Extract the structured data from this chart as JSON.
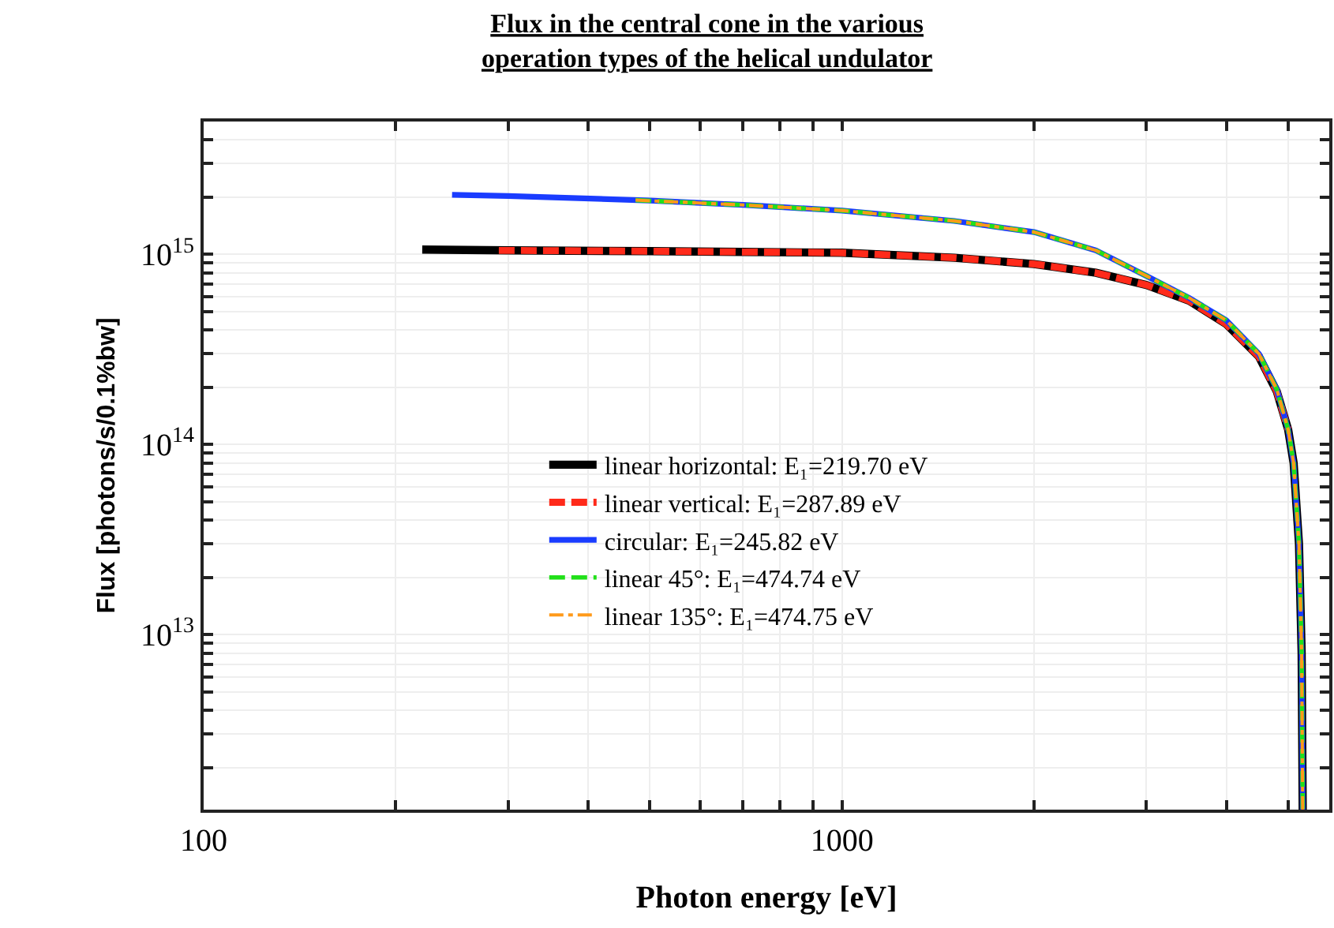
{
  "chart_data": {
    "type": "line",
    "title": "Flux in the central cone in the various\noperation types of the helical undulator",
    "xlabel": "Photon energy [eV]",
    "ylabel": "Flux [photons/s/0.1%bw]",
    "log": "xy",
    "grid": true,
    "legend": "center",
    "marker": "none",
    "xlim": [
      100,
      5800
    ],
    "ylim": [
      1200000000000.0,
      5000000000000000.0
    ],
    "xticks": [
      100,
      {
        "value": 200,
        "label": null
      },
      {
        "value": 300,
        "label": null
      },
      {
        "value": 400,
        "label": null
      },
      {
        "value": 500,
        "label": null
      },
      {
        "value": 600,
        "label": null
      },
      {
        "value": 700,
        "label": null
      },
      {
        "value": 800,
        "label": null
      },
      {
        "value": 900,
        "label": null
      },
      1000,
      {
        "value": 2000,
        "label": null
      },
      {
        "value": 3000,
        "label": null
      },
      {
        "value": 4000,
        "label": null
      },
      {
        "value": 5000,
        "label": null
      }
    ],
    "yticks": [
      {
        "value": 2000000000000.0,
        "label": null
      },
      {
        "value": 3000000000000.0,
        "label": null
      },
      {
        "value": 4000000000000.0,
        "label": null
      },
      {
        "value": 5000000000000.0,
        "label": null
      },
      {
        "value": 6000000000000.0,
        "label": null
      },
      {
        "value": 7000000000000.0,
        "label": null
      },
      {
        "value": 8000000000000.0,
        "label": null
      },
      {
        "value": 9000000000000.0,
        "label": null
      },
      {
        "value": 10000000000000.0,
        "label": "10$^{13}$"
      },
      {
        "value": 20000000000000.0,
        "label": null
      },
      {
        "value": 30000000000000.0,
        "label": null
      },
      {
        "value": 40000000000000.0,
        "label": null
      },
      {
        "value": 50000000000000.0,
        "label": null
      },
      {
        "value": 60000000000000.0,
        "label": null
      },
      {
        "value": 70000000000000.0,
        "label": null
      },
      {
        "value": 80000000000000.0,
        "label": null
      },
      {
        "value": 90000000000000.0,
        "label": null
      },
      {
        "value": 100000000000000.0,
        "label": "10$^{14}$"
      },
      {
        "value": 200000000000000.0,
        "label": null
      },
      {
        "value": 300000000000000.0,
        "label": null
      },
      {
        "value": 400000000000000.0,
        "label": null
      },
      {
        "value": 500000000000000.0,
        "label": null
      },
      {
        "value": 600000000000000.0,
        "label": null
      },
      {
        "value": 700000000000000.0,
        "label": null
      },
      {
        "value": 800000000000000.0,
        "label": null
      },
      {
        "value": 900000000000000.0,
        "label": null
      },
      {
        "value": 1000000000000000.0,
        "label": "10$^{15}$"
      },
      {
        "value": 2000000000000000.0,
        "label": null
      },
      {
        "value": 3000000000000000.0,
        "label": null
      },
      {
        "value": 4000000000000000.0,
        "label": null
      }
    ],
    "series": [
      {
        "name": "linear horizontal: E₁=219.70 eV",
        "color": "#000000",
        "line_style": "solid",
        "x": [
          220,
          300,
          500,
          700,
          1000,
          1500,
          2000,
          2500,
          3000,
          3500,
          4000,
          4500,
          4800,
          5000,
          5100,
          5200,
          5250,
          5270
        ],
        "values": [
          1060000000000000.0,
          1050000000000000.0,
          1040000000000000.0,
          1030000000000000.0,
          1020000000000000.0,
          960000000000000.0,
          890000000000000.0,
          800000000000000.0,
          690000000000000.0,
          570000000000000.0,
          430000000000000.0,
          290000000000000.0,
          190000000000000.0,
          120000000000000.0,
          80000000000000.0,
          30000000000000.0,
          8000000000000.0,
          1200000000000.0
        ]
      },
      {
        "name": "linear vertical: E₁=287.89 eV",
        "color": "#ff2a1a",
        "line_style": "dashed",
        "x": [
          290,
          500,
          700,
          1000,
          1500,
          2000,
          2500,
          3000,
          3500,
          4000,
          4500,
          4800,
          5000
        ],
        "values": [
          1050000000000000.0,
          1040000000000000.0,
          1030000000000000.0,
          1020000000000000.0,
          960000000000000.0,
          890000000000000.0,
          800000000000000.0,
          690000000000000.0,
          570000000000000.0,
          430000000000000.0,
          290000000000000.0,
          190000000000000.0,
          120000000000000.0
        ]
      },
      {
        "name": "circular: E₁=245.82 eV",
        "color": "#1a3cff",
        "line_style": "solid",
        "x": [
          245,
          300,
          500,
          700,
          1000,
          1500,
          2000,
          2500,
          3000,
          3500,
          4000,
          4500,
          4800,
          5000,
          5100,
          5200,
          5250,
          5270
        ],
        "values": [
          2060000000000000.0,
          2030000000000000.0,
          1920000000000000.0,
          1820000000000000.0,
          1700000000000000.0,
          1500000000000000.0,
          1310000000000000.0,
          1050000000000000.0,
          770000000000000.0,
          590000000000000.0,
          450000000000000.0,
          300000000000000.0,
          195000000000000.0,
          120000000000000.0,
          80000000000000.0,
          30000000000000.0,
          8000000000000.0,
          1200000000000.0
        ]
      },
      {
        "name": "linear 45°: E₁=474.74 eV",
        "color": "#22e01a",
        "line_style": "dashed",
        "x": [
          475,
          700,
          1000,
          1500,
          2000,
          2500,
          3000,
          3500,
          4000,
          4500,
          4800,
          5000,
          5100,
          5200,
          5250,
          5270
        ],
        "values": [
          1930000000000000.0,
          1820000000000000.0,
          1700000000000000.0,
          1500000000000000.0,
          1310000000000000.0,
          1050000000000000.0,
          770000000000000.0,
          590000000000000.0,
          450000000000000.0,
          300000000000000.0,
          195000000000000.0,
          120000000000000.0,
          80000000000000.0,
          30000000000000.0,
          8000000000000.0,
          1200000000000.0
        ]
      },
      {
        "name": "linear 135°: E₁=474.75 eV",
        "color": "#ff9a1a",
        "line_style": "dashdot",
        "x": [
          475,
          700,
          1000,
          1500,
          2000,
          2500,
          3000,
          3500,
          4000,
          4500,
          4800,
          5000,
          5100,
          5200,
          5250,
          5270
        ],
        "values": [
          1930000000000000.0,
          1820000000000000.0,
          1700000000000000.0,
          1500000000000000.0,
          1310000000000000.0,
          1050000000000000.0,
          770000000000000.0,
          590000000000000.0,
          450000000000000.0,
          300000000000000.0,
          195000000000000.0,
          120000000000000.0,
          80000000000000.0,
          30000000000000.0,
          8000000000000.0,
          1200000000000.0
        ]
      }
    ]
  }
}
